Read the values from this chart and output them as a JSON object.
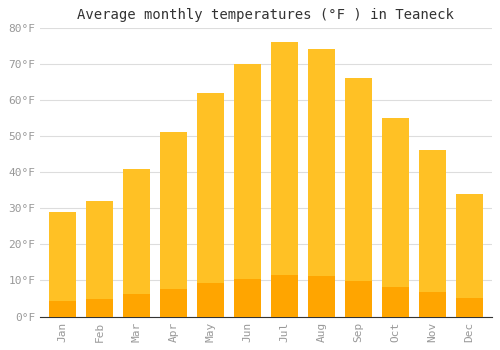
{
  "title": "Average monthly temperatures (°F ) in Teaneck",
  "months": [
    "Jan",
    "Feb",
    "Mar",
    "Apr",
    "May",
    "Jun",
    "Jul",
    "Aug",
    "Sep",
    "Oct",
    "Nov",
    "Dec"
  ],
  "values": [
    29,
    32,
    41,
    51,
    62,
    70,
    76,
    74,
    66,
    55,
    46,
    34
  ],
  "bar_color_top": "#FFC125",
  "bar_color_bottom": "#FFA500",
  "background_color": "#FFFFFF",
  "grid_color": "#DDDDDD",
  "ylim": [
    0,
    80
  ],
  "yticks": [
    0,
    10,
    20,
    30,
    40,
    50,
    60,
    70,
    80
  ],
  "ytick_labels": [
    "0°F",
    "10°F",
    "20°F",
    "30°F",
    "40°F",
    "50°F",
    "60°F",
    "70°F",
    "80°F"
  ],
  "title_fontsize": 10,
  "tick_fontsize": 8,
  "tick_color": "#999999",
  "font_family": "monospace",
  "bar_width": 0.75,
  "title_color": "#333333"
}
